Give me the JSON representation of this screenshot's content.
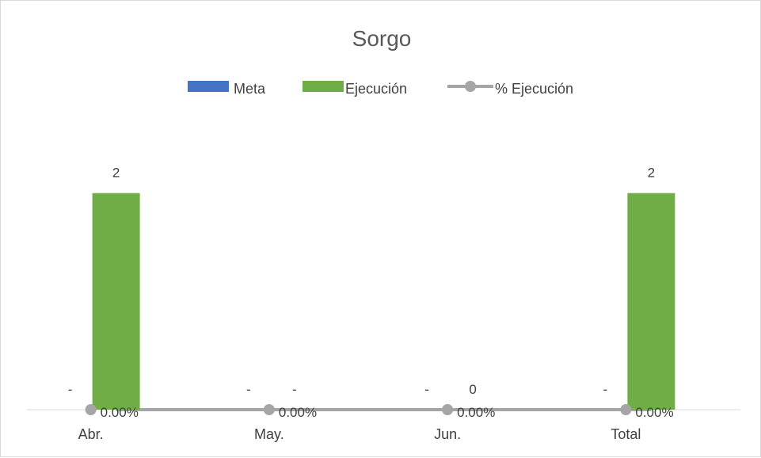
{
  "chart_data": {
    "type": "bar",
    "title": "Sorgo",
    "categories": [
      "Abr.",
      "May.",
      "Jun.",
      "Total"
    ],
    "series": [
      {
        "name": "Meta",
        "kind": "bar",
        "color": "#4472c4",
        "values": [
          0,
          0,
          0,
          0
        ],
        "labels": [
          "-",
          "-",
          "-",
          "-"
        ]
      },
      {
        "name": "Ejecución",
        "kind": "bar",
        "color": "#70ad47",
        "values": [
          2,
          0,
          0,
          2
        ],
        "labels": [
          "2",
          "-",
          "0",
          "2"
        ]
      },
      {
        "name": "% Ejecución",
        "kind": "line",
        "color": "#a5a5a5",
        "values": [
          0,
          0,
          0,
          0
        ],
        "labels": [
          "0.00%",
          "0.00%",
          "0.00%",
          "0.00%"
        ]
      }
    ],
    "ylim": [
      0,
      2.4
    ],
    "legend": "top",
    "grid": false
  }
}
